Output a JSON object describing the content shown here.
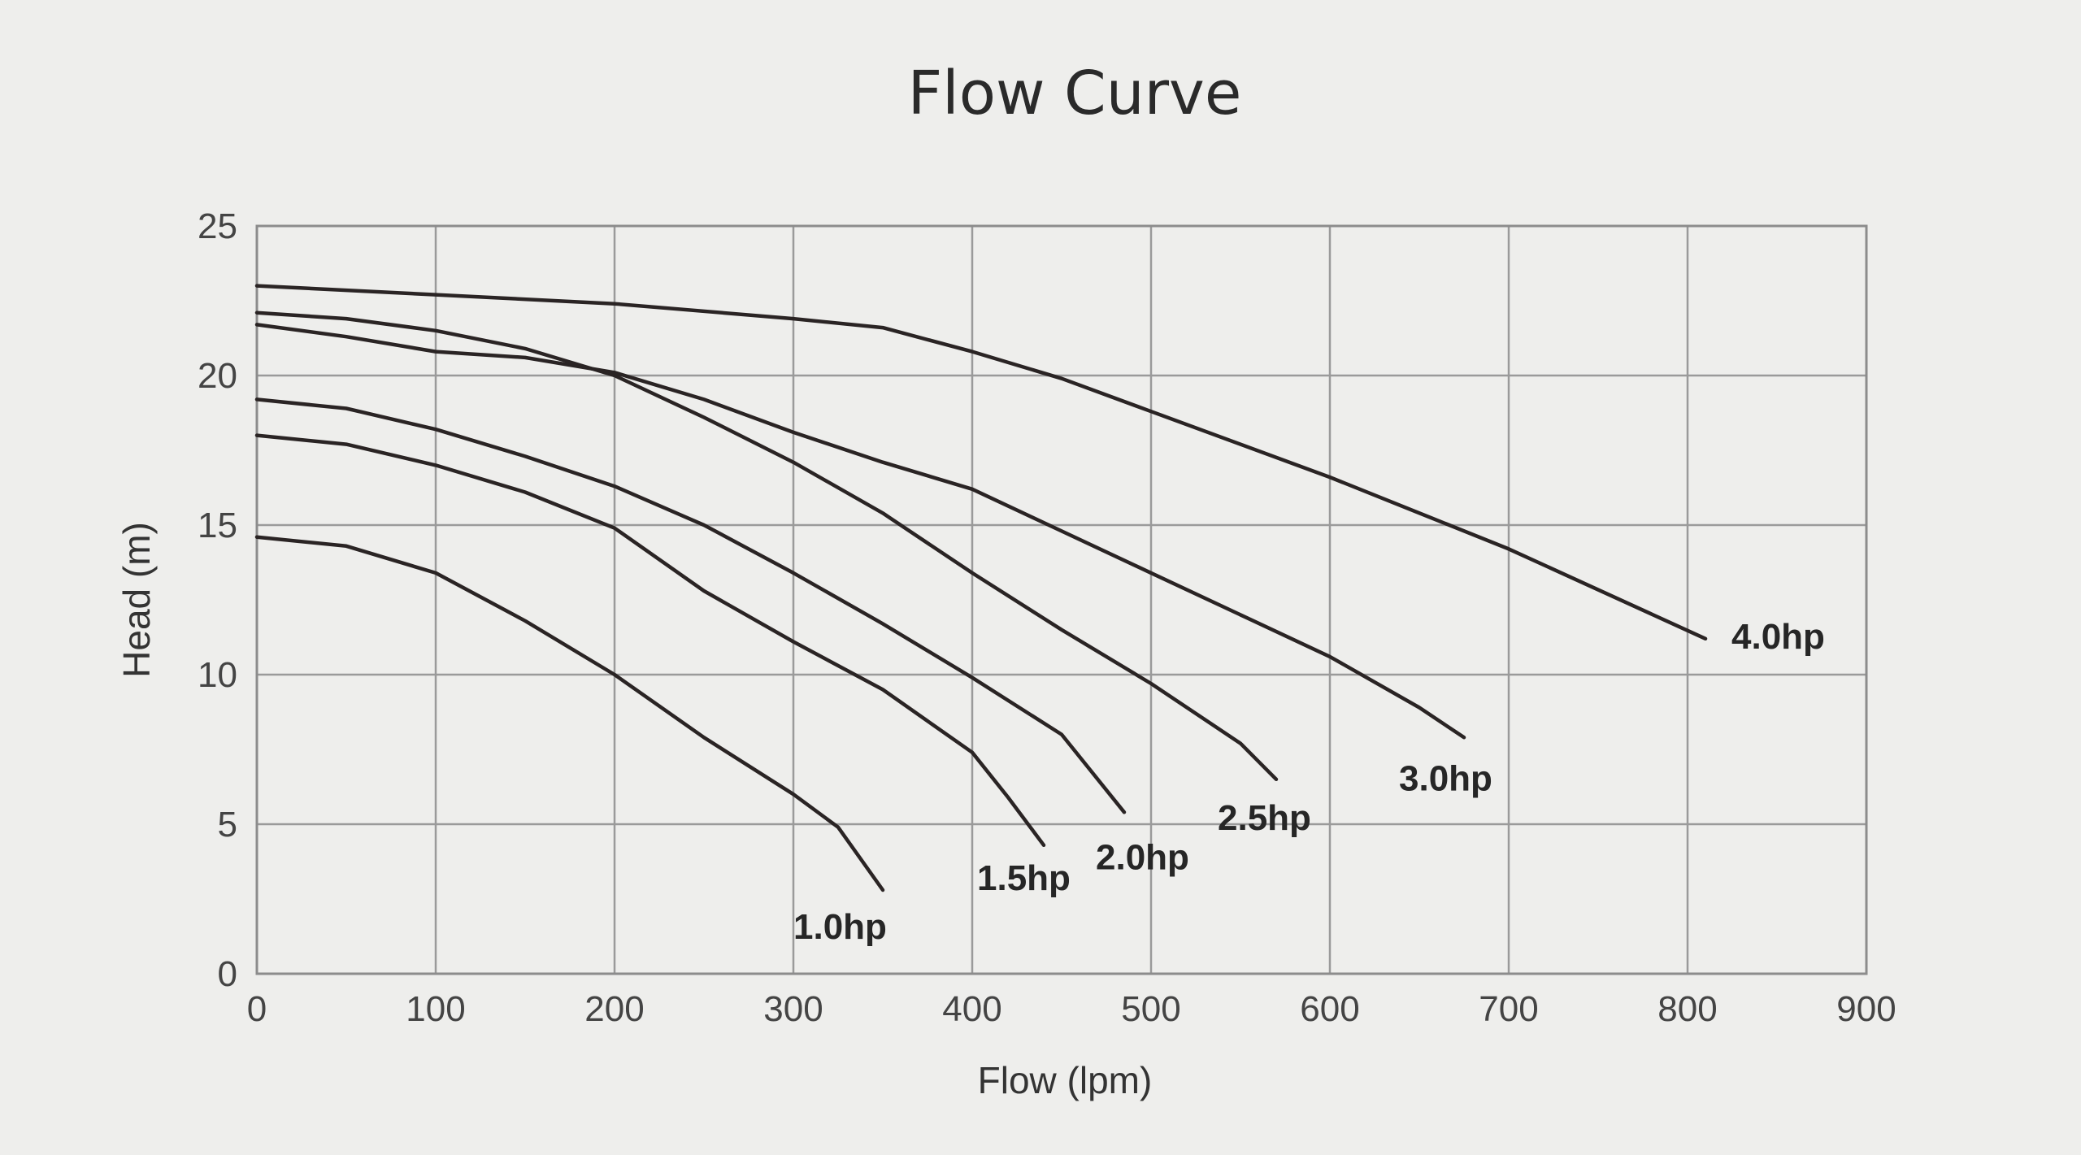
{
  "chart_data": {
    "type": "line",
    "title": "Flow Curve",
    "xlabel": "Flow (lpm)",
    "ylabel": "Head (m)",
    "xlim": [
      0,
      900
    ],
    "ylim": [
      0,
      25
    ],
    "x_ticks": [
      0,
      100,
      200,
      300,
      400,
      500,
      600,
      700,
      800,
      900
    ],
    "y_ticks": [
      0,
      5,
      10,
      15,
      20,
      25
    ],
    "x_tick_labels": [
      "0",
      "100",
      "200",
      "300",
      "400",
      "500",
      "600",
      "700",
      "800",
      "900"
    ],
    "y_tick_labels": [
      "0",
      "5",
      "10",
      "15",
      "20",
      "25"
    ],
    "grid": true,
    "legend": "none (series labelled at curve ends)",
    "line_color": "#2a2424",
    "series": [
      {
        "name": "1.0hp",
        "points": [
          [
            0,
            14.6
          ],
          [
            50,
            14.3
          ],
          [
            100,
            13.4
          ],
          [
            150,
            11.8
          ],
          [
            200,
            10.0
          ],
          [
            250,
            7.9
          ],
          [
            300,
            6.0
          ],
          [
            325,
            4.9
          ],
          [
            350,
            2.8
          ]
        ]
      },
      {
        "name": "1.5hp",
        "points": [
          [
            0,
            18.0
          ],
          [
            50,
            17.7
          ],
          [
            100,
            17.0
          ],
          [
            150,
            16.1
          ],
          [
            200,
            14.9
          ],
          [
            250,
            12.8
          ],
          [
            300,
            11.1
          ],
          [
            350,
            9.5
          ],
          [
            400,
            7.4
          ],
          [
            420,
            5.9
          ],
          [
            440,
            4.3
          ]
        ]
      },
      {
        "name": "2.0hp",
        "points": [
          [
            0,
            19.2
          ],
          [
            50,
            18.9
          ],
          [
            100,
            18.2
          ],
          [
            150,
            17.3
          ],
          [
            200,
            16.3
          ],
          [
            250,
            15.0
          ],
          [
            300,
            13.4
          ],
          [
            350,
            11.7
          ],
          [
            400,
            9.9
          ],
          [
            450,
            8.0
          ],
          [
            485,
            5.4
          ]
        ]
      },
      {
        "name": "2.5hp",
        "points": [
          [
            0,
            22.1
          ],
          [
            50,
            21.9
          ],
          [
            100,
            21.5
          ],
          [
            150,
            20.9
          ],
          [
            200,
            20.0
          ],
          [
            250,
            18.6
          ],
          [
            300,
            17.1
          ],
          [
            350,
            15.4
          ],
          [
            400,
            13.4
          ],
          [
            450,
            11.5
          ],
          [
            500,
            9.7
          ],
          [
            550,
            7.7
          ],
          [
            570,
            6.5
          ]
        ]
      },
      {
        "name": "3.0hp",
        "points": [
          [
            0,
            21.7
          ],
          [
            50,
            21.3
          ],
          [
            100,
            20.8
          ],
          [
            150,
            20.6
          ],
          [
            200,
            20.1
          ],
          [
            250,
            19.2
          ],
          [
            300,
            18.1
          ],
          [
            350,
            17.1
          ],
          [
            400,
            16.2
          ],
          [
            450,
            14.8
          ],
          [
            500,
            13.4
          ],
          [
            550,
            12.0
          ],
          [
            600,
            10.6
          ],
          [
            650,
            8.9
          ],
          [
            675,
            7.9
          ]
        ]
      },
      {
        "name": "4.0hp",
        "points": [
          [
            0,
            23.0
          ],
          [
            100,
            22.7
          ],
          [
            200,
            22.4
          ],
          [
            300,
            21.9
          ],
          [
            350,
            21.6
          ],
          [
            400,
            20.8
          ],
          [
            450,
            19.9
          ],
          [
            500,
            18.8
          ],
          [
            600,
            16.6
          ],
          [
            700,
            14.2
          ],
          [
            810,
            11.2
          ]
        ]
      }
    ]
  }
}
